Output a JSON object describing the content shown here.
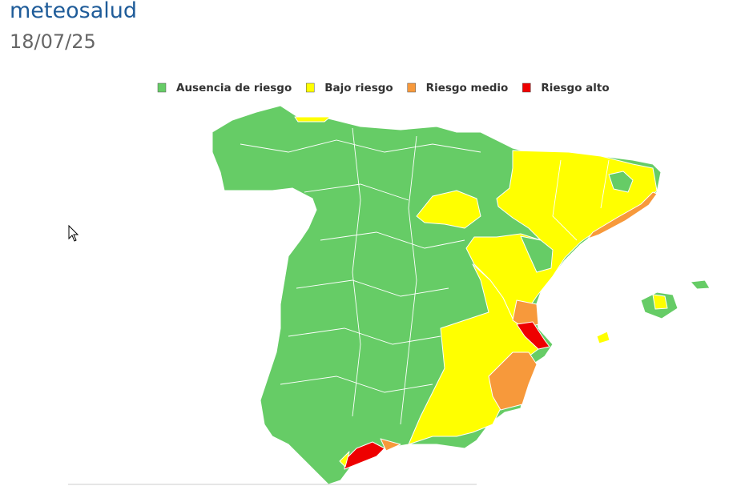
{
  "header": {
    "title": "meteosalud",
    "date": "18/07/25"
  },
  "legend": [
    {
      "label": "Ausencia de riesgo",
      "color": "#66cc66"
    },
    {
      "label": "Bajo riesgo",
      "color": "#ffff00"
    },
    {
      "label": "Riesgo medio",
      "color": "#f7993b"
    },
    {
      "label": "Riesgo alto",
      "color": "#ee0000"
    }
  ]
}
